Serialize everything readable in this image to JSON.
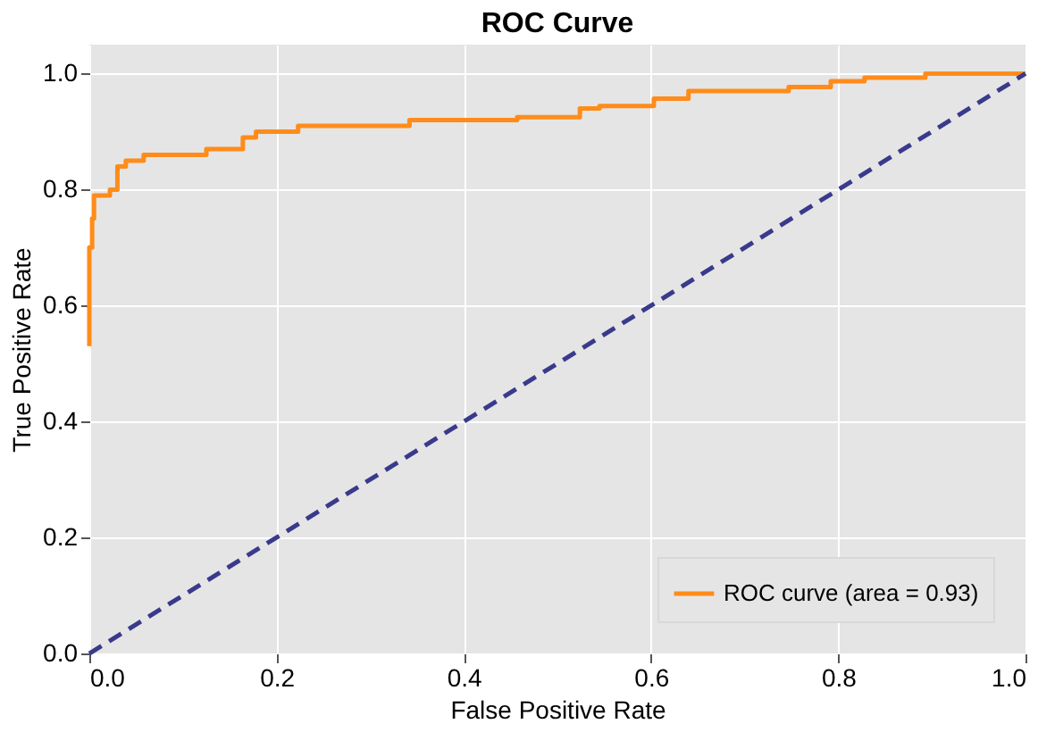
{
  "chart_data": {
    "type": "line",
    "title": "ROC Curve",
    "xlabel": "False Positive Rate",
    "ylabel": "True Positive Rate",
    "xlim": [
      0,
      1
    ],
    "ylim": [
      0,
      1.05
    ],
    "xticks": [
      {
        "value": 0,
        "label": "0.0"
      },
      0.2,
      0.4,
      0.6,
      0.8,
      {
        "value": 1,
        "label": "1.0"
      }
    ],
    "yticks": [
      {
        "value": 0,
        "label": "0.0"
      },
      0.2,
      0.4,
      0.6,
      0.8,
      {
        "value": 1,
        "label": "1.0"
      }
    ],
    "grid": true,
    "legend": "bottom right",
    "marker": "none",
    "series": [
      {
        "name": "ROC curve (area = 0.93)",
        "type": "step",
        "color": "#ff8c1a",
        "line_style": "solid",
        "x": [
          0,
          0,
          0.003,
          0.005,
          0.022,
          0.03,
          0.039,
          0.058,
          0.125,
          0.164,
          0.178,
          0.223,
          0.342,
          0.457,
          0.524,
          0.545,
          0.603,
          0.64,
          0.747,
          0.792,
          0.828,
          0.893,
          1.0
        ],
        "values": [
          0.53,
          0.7,
          0.75,
          0.79,
          0.8,
          0.84,
          0.85,
          0.86,
          0.87,
          0.89,
          0.9,
          0.91,
          0.92,
          0.925,
          0.94,
          0.944,
          0.957,
          0.97,
          0.977,
          0.987,
          0.993,
          1.0,
          1.0
        ]
      },
      {
        "type": "line",
        "color": "#3a3a8c",
        "line_style": "dashed",
        "x": [
          0,
          1
        ],
        "values": [
          0,
          1
        ]
      }
    ]
  }
}
